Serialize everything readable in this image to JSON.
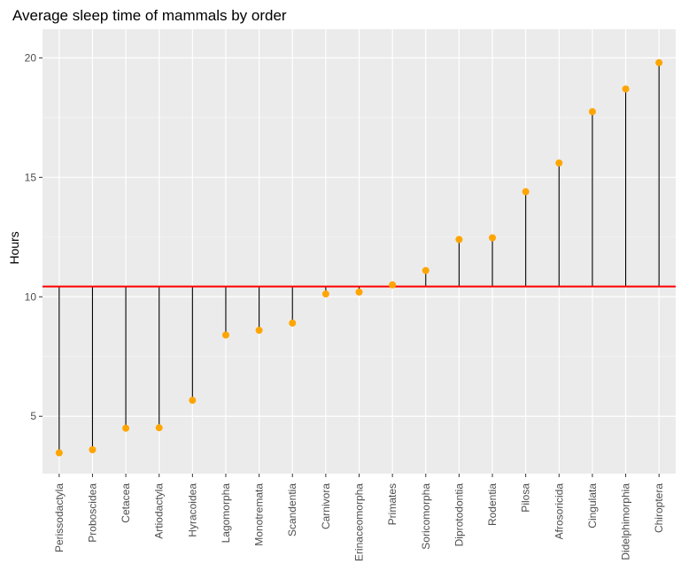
{
  "chart_data": {
    "type": "lollipop",
    "title": "Average sleep time of mammals by order",
    "xlabel": "",
    "ylabel": "Hours",
    "ylim": [
      2.6,
      21.2
    ],
    "yticks": [
      5,
      10,
      15,
      20
    ],
    "reference_line": {
      "y": 10.43,
      "color": "#ff0000"
    },
    "categories": [
      "Perissodactyla",
      "Proboscidea",
      "Cetacea",
      "Artiodactyla",
      "Hyracoidea",
      "Lagomorpha",
      "Monotremata",
      "Scandentia",
      "Carnivora",
      "Erinaceomorpha",
      "Primates",
      "Soricomorpha",
      "Diprotodontia",
      "Rodentia",
      "Pilosa",
      "Afrosoricida",
      "Cingulata",
      "Didelphimorphia",
      "Chiroptera"
    ],
    "values": [
      3.47,
      3.6,
      4.5,
      4.52,
      5.67,
      8.4,
      8.6,
      8.9,
      10.12,
      10.2,
      10.5,
      11.1,
      12.4,
      12.47,
      14.4,
      15.6,
      17.75,
      18.7,
      19.8
    ],
    "point_color": "#ffa500",
    "stem_color": "#000000",
    "grid": true
  }
}
